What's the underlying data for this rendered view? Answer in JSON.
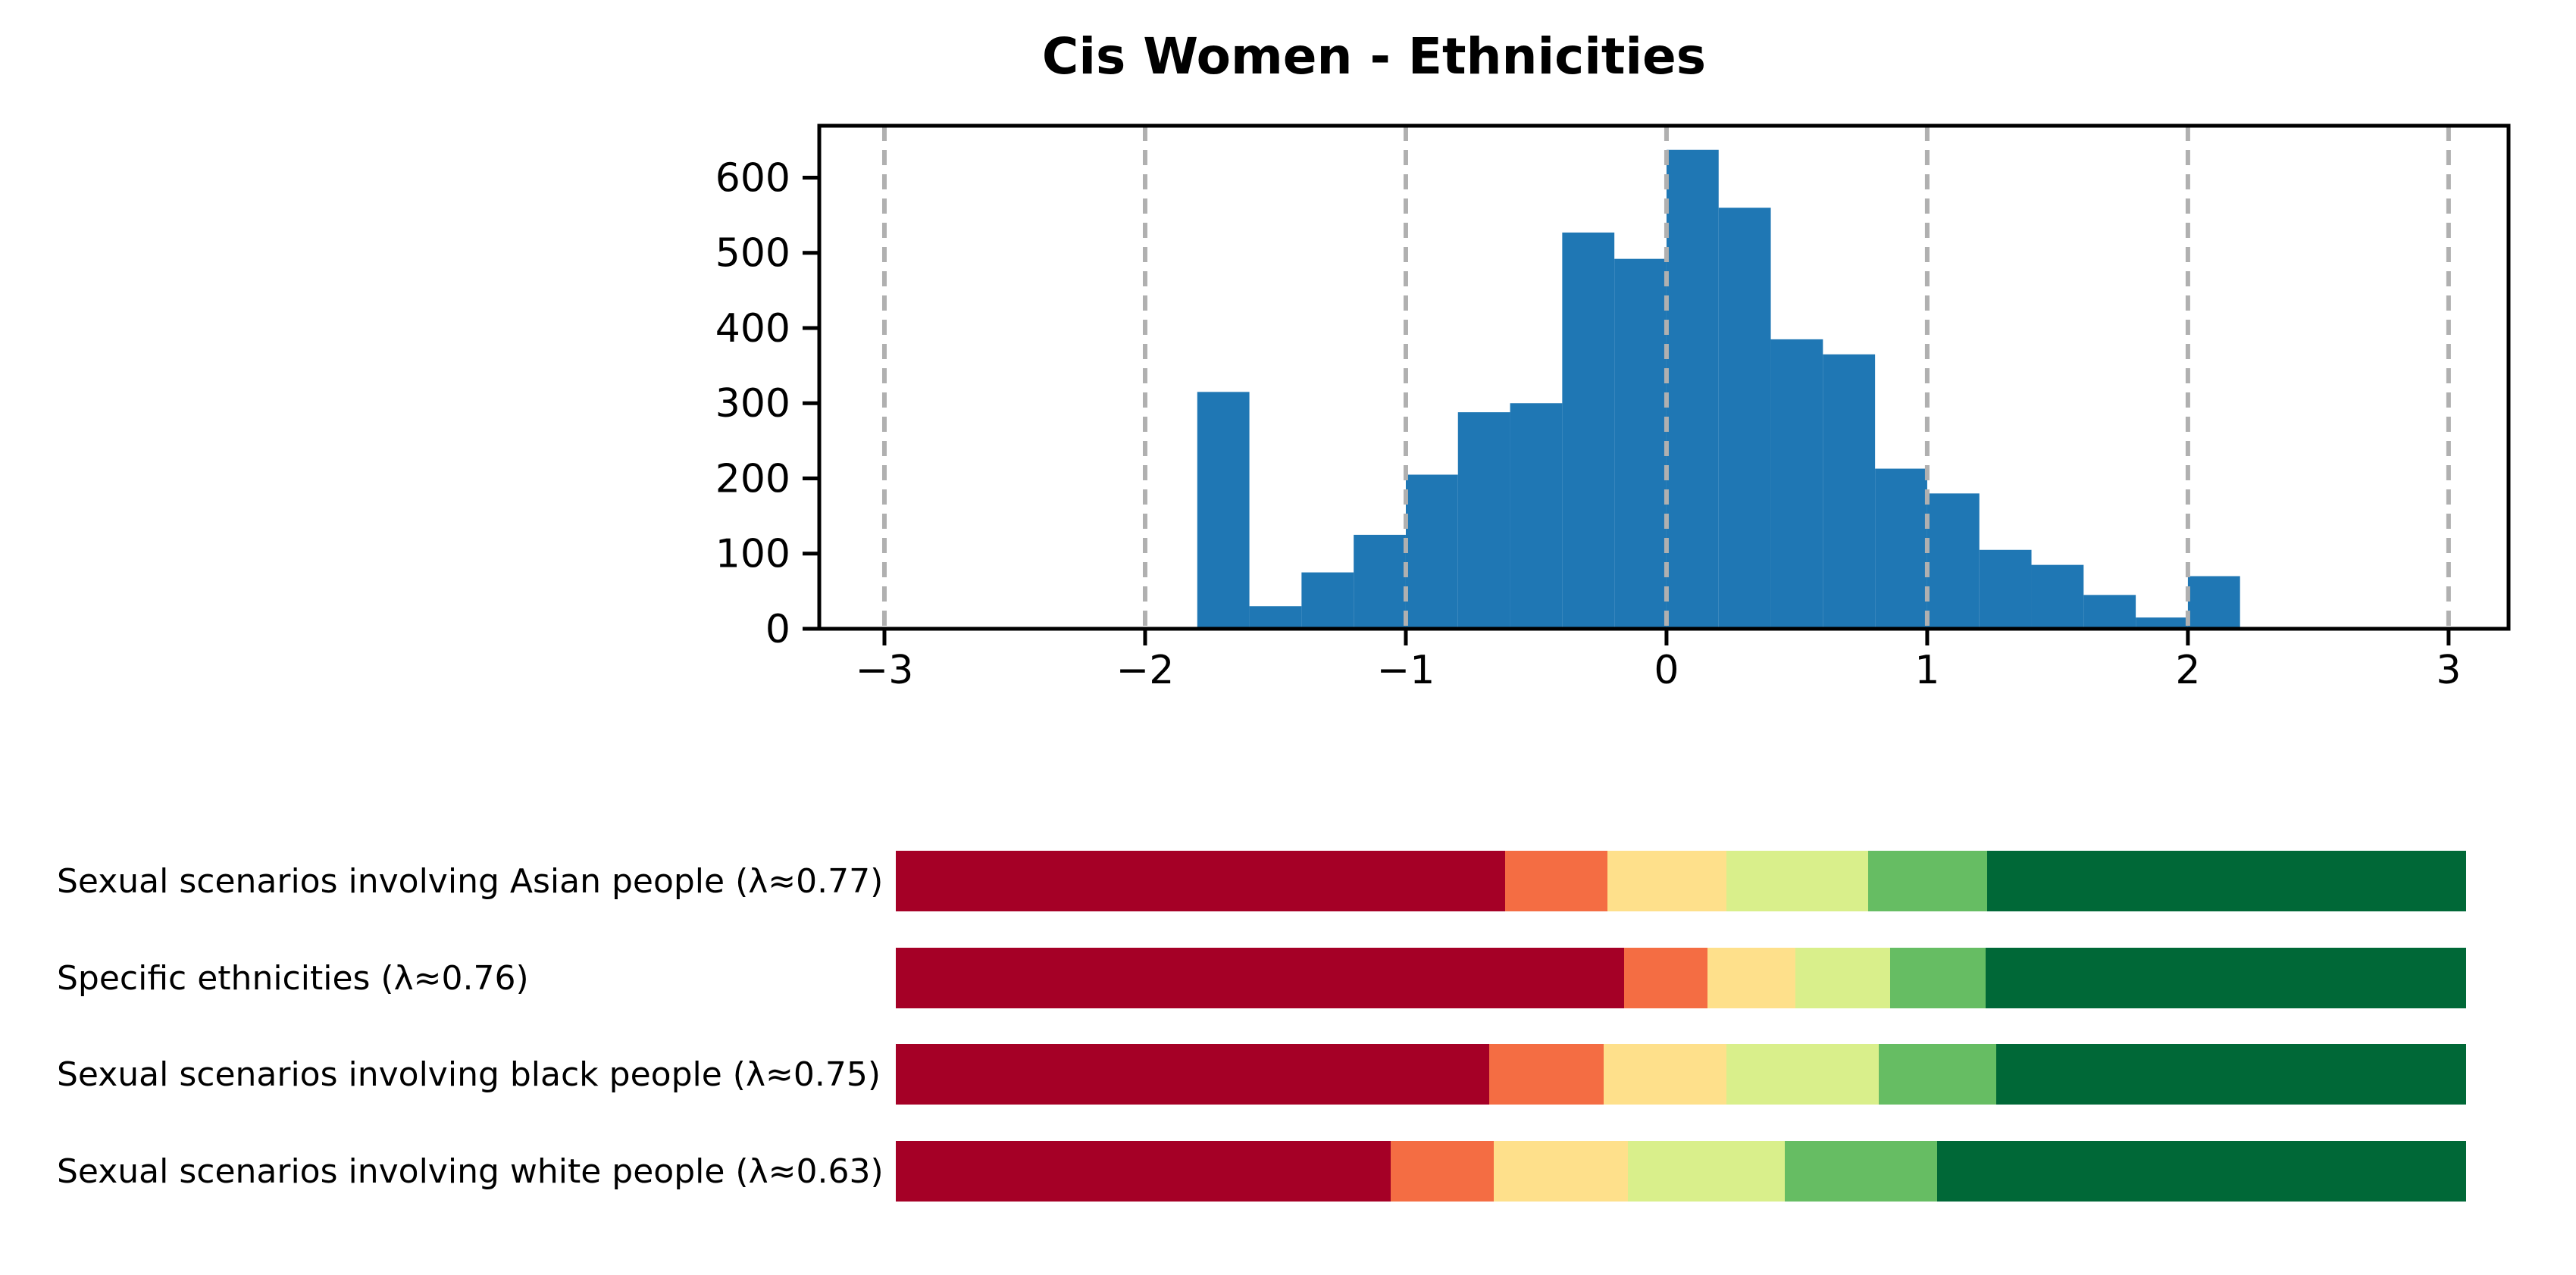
{
  "title": "Cis Women - Ethnicities",
  "chart_data": [
    {
      "type": "bar",
      "subtype": "histogram",
      "title": "Cis Women - Ethnicities",
      "bar_color": "#1f77b4",
      "bin_start": -1.8,
      "bin_width": 0.2,
      "bin_edges": [
        -1.8,
        -1.6,
        -1.4,
        -1.2,
        -1.0,
        -0.8,
        -0.6,
        -0.4,
        -0.2,
        0.0,
        0.2,
        0.4,
        0.6,
        0.8,
        1.0,
        1.2,
        1.4,
        1.6,
        1.8,
        2.0,
        2.2
      ],
      "values": [
        315,
        30,
        75,
        125,
        205,
        288,
        300,
        527,
        492,
        637,
        560,
        385,
        365,
        213,
        180,
        105,
        85,
        45,
        15,
        70
      ],
      "xlabel": "",
      "ylabel": "",
      "xlim": [
        -3.25,
        3.23
      ],
      "ylim": [
        0,
        669
      ],
      "xticks": [
        "−3",
        "−2",
        "−1",
        "0",
        "1",
        "2",
        "3"
      ],
      "xtick_values": [
        -3,
        -2,
        -1,
        0,
        1,
        2,
        3
      ],
      "yticks": [
        "0",
        "100",
        "200",
        "300",
        "400",
        "500",
        "600"
      ],
      "ytick_values": [
        0,
        100,
        200,
        300,
        400,
        500,
        600
      ],
      "grid": "vertical dashed gridlines at x ticks, drawn over bars",
      "grid_color": "#b0b0b0",
      "legend": "none"
    },
    {
      "type": "bar",
      "subtype": "horizontal-stacked-fraction",
      "categories": [
        "Sexual scenarios involving Asian people (λ≈0.77)",
        "Specific ethnicities (λ≈0.76)",
        "Sexual scenarios involving black people (λ≈0.75)",
        "Sexual scenarios involving white people (λ≈0.63)"
      ],
      "lambda_values": [
        0.77,
        0.76,
        0.75,
        0.63
      ],
      "segment_colors": [
        "#a50026",
        "#f46d43",
        "#fee08b",
        "#d9ef8b",
        "#66bd63",
        "#006837"
      ],
      "segment_color_names": [
        "dark-red",
        "orange",
        "yellow",
        "yellow-green",
        "green",
        "dark-green"
      ],
      "series": [
        {
          "name": "Sexual scenarios involving Asian people (λ≈0.77)",
          "fractions": [
            0.388,
            0.065,
            0.076,
            0.09,
            0.076,
            0.305
          ]
        },
        {
          "name": "Specific ethnicities (λ≈0.76)",
          "fractions": [
            0.464,
            0.053,
            0.056,
            0.06,
            0.061,
            0.306
          ]
        },
        {
          "name": "Sexual scenarios involving black people (λ≈0.75)",
          "fractions": [
            0.378,
            0.073,
            0.078,
            0.097,
            0.075,
            0.299
          ]
        },
        {
          "name": "Sexual scenarios involving white people (λ≈0.63)",
          "fractions": [
            0.315,
            0.066,
            0.085,
            0.1,
            0.097,
            0.337
          ]
        }
      ],
      "legend": "none",
      "axes": "none"
    }
  ]
}
